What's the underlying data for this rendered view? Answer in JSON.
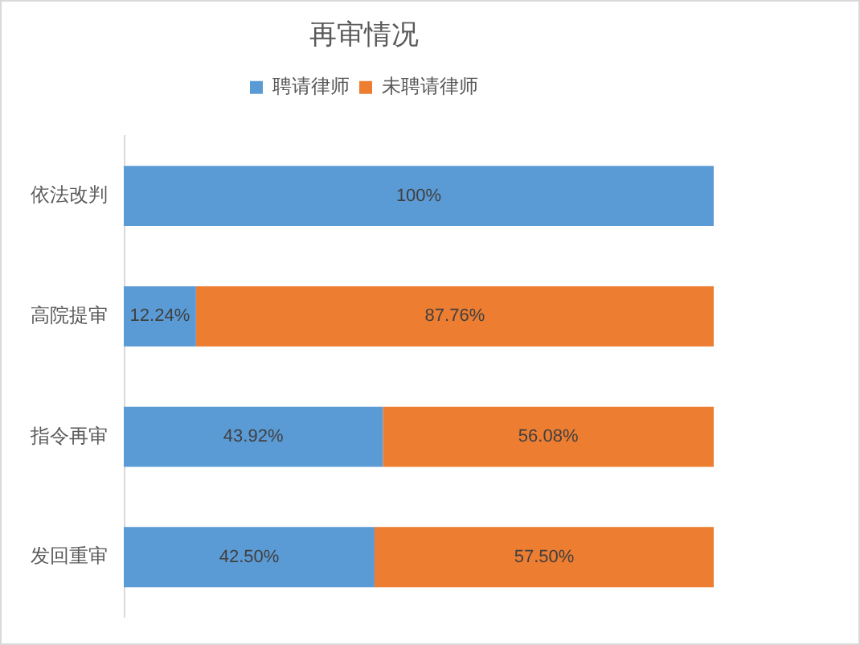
{
  "chart_data": {
    "type": "bar",
    "title": "再审情况",
    "orientation": "horizontal",
    "stacked": true,
    "categories": [
      "依法改判",
      "高院提审",
      "指令再审",
      "发回重审"
    ],
    "series": [
      {
        "name": "聘请律师",
        "color": "#5b9bd5",
        "values": [
          100,
          12.24,
          43.92,
          42.5
        ],
        "value_labels": [
          "100%",
          "12.24%",
          "43.92%",
          "42.50%"
        ]
      },
      {
        "name": "未聘请律师",
        "color": "#ed7d31",
        "values": [
          null,
          87.76,
          56.08,
          57.5
        ],
        "value_labels": [
          null,
          "87.76%",
          "56.08%",
          "57.50%"
        ]
      }
    ],
    "xlim": [
      0,
      100
    ],
    "tick_labels": "y",
    "legend": "top",
    "grid": false
  }
}
